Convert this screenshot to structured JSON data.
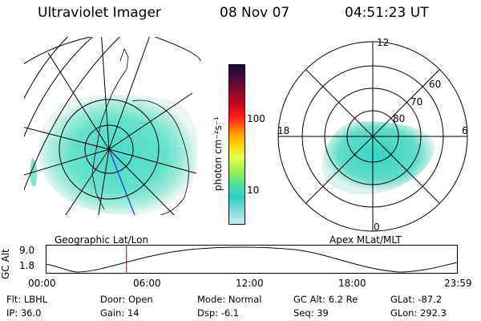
{
  "header": {
    "instrument": "Ultraviolet Imager",
    "date": "08 Nov 07",
    "time": "04:51:23 UT"
  },
  "left_panel": {
    "caption": "Geographic Lat/Lon"
  },
  "colorbar": {
    "unit_label": "photon cm⁻²s⁻¹",
    "ticks": [
      "100",
      "10"
    ],
    "colors": [
      "#1a0a3a",
      "#4b0a3a",
      "#8b0a2a",
      "#c80a1e",
      "#ff2020",
      "#ff8c00",
      "#ffd200",
      "#e6ff50",
      "#a0f050",
      "#50e0a0",
      "#30d0c8",
      "#80dcdc",
      "#c8ecec"
    ]
  },
  "right_panel": {
    "caption": "Apex MLat/MLT",
    "mlt_labels": {
      "top": "12",
      "bottom": "0",
      "left": "18",
      "right": "6"
    },
    "lat_labels": [
      "60",
      "70",
      "80"
    ]
  },
  "timeline": {
    "y_axis_label": "GC Alt",
    "y_ticks": [
      "9.0",
      "1.8"
    ],
    "x_ticks": [
      "00:00",
      "06:00",
      "12:00",
      "18:00",
      "23:59"
    ],
    "current_marker_fraction": 0.196
  },
  "status": {
    "row1": [
      {
        "label": "Flt:",
        "value": "LBHL"
      },
      {
        "label": "Door:",
        "value": "Open"
      },
      {
        "label": "Mode:",
        "value": "Normal"
      },
      {
        "label": "GC Alt:",
        "value": "6.2 Re"
      },
      {
        "label": "GLat:",
        "value": "-87.2"
      }
    ],
    "row2": [
      {
        "label": "IP:",
        "value": "36.0"
      },
      {
        "label": "Gain:",
        "value": "14"
      },
      {
        "label": "Dsp:",
        "value": "-6.1"
      },
      {
        "label": "Seq:",
        "value": "39"
      },
      {
        "label": "GLon:",
        "value": "292.3"
      }
    ]
  }
}
